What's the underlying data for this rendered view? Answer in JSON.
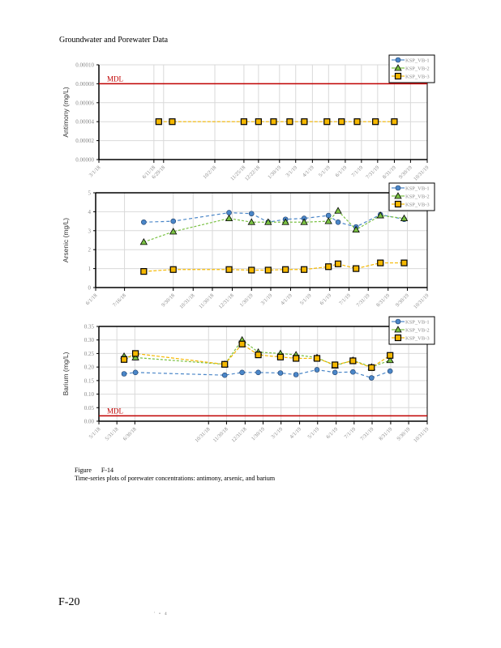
{
  "header": {
    "title": "Groundwater and Porewater Data"
  },
  "colors": {
    "vb1": "#4a86c8",
    "vb2": "#7ac143",
    "vb3": "#f5b800",
    "mdl": "#c00000",
    "grid": "#d9d9d9",
    "tick_text": "#8a8a8a"
  },
  "chart_data": [
    {
      "type": "line",
      "title": "",
      "xlabel": "",
      "ylabel": "Antimony (mg/L)",
      "ylim": [
        0,
        0.0001
      ],
      "yticks": [
        "0.00000",
        "0.00002",
        "0.00004",
        "0.00006",
        "0.00008",
        "0.00010"
      ],
      "yticks_values": [
        0,
        2e-05,
        4e-05,
        6e-05,
        8e-05,
        0.0001
      ],
      "xlim": [
        "2018-03-01",
        "2019-10-31"
      ],
      "xticks": [
        {
          "date": "2018-03-01",
          "label": "3/1/18"
        },
        {
          "date": "2018-06-11",
          "label": "6/11/18"
        },
        {
          "date": "2018-06-29",
          "label": "6/29/18"
        },
        {
          "date": "2018-10-02",
          "label": "10/2/18"
        },
        {
          "date": "2018-11-25",
          "label": "11/25/18"
        },
        {
          "date": "2018-12-22",
          "label": "12/22/18"
        },
        {
          "date": "2019-01-30",
          "label": "1/30/19"
        },
        {
          "date": "2019-03-01",
          "label": "3/1/19"
        },
        {
          "date": "2019-04-01",
          "label": "4/1/19"
        },
        {
          "date": "2019-05-01",
          "label": "5/1/19"
        },
        {
          "date": "2019-06-01",
          "label": "6/1/19"
        },
        {
          "date": "2019-07-01",
          "label": "7/1/19"
        },
        {
          "date": "2019-07-31",
          "label": "7/31/19"
        },
        {
          "date": "2019-08-31",
          "label": "8/31/19"
        },
        {
          "date": "2019-09-30",
          "label": "9/30/19"
        },
        {
          "date": "2019-10-31",
          "label": "10/31/19"
        }
      ],
      "mdl": {
        "label": "MDL",
        "value": 8e-05
      },
      "legend": "top-right",
      "series": [
        {
          "name": "KSP_VB-1",
          "marker": "circle",
          "points": []
        },
        {
          "name": "KSP_VB-2",
          "marker": "triangle",
          "points": []
        },
        {
          "name": "KSP_VB-3",
          "marker": "square",
          "points": [
            {
              "x": "2018-06-20",
              "y": 4e-05
            },
            {
              "x": "2018-07-15",
              "y": 4e-05
            },
            {
              "x": "2018-11-25",
              "y": 4e-05
            },
            {
              "x": "2018-12-22",
              "y": 4e-05
            },
            {
              "x": "2019-01-19",
              "y": 4e-05
            },
            {
              "x": "2019-02-18",
              "y": 4e-05
            },
            {
              "x": "2019-03-17",
              "y": 4e-05
            },
            {
              "x": "2019-04-28",
              "y": 4e-05
            },
            {
              "x": "2019-05-25",
              "y": 4e-05
            },
            {
              "x": "2019-06-23",
              "y": 4e-05
            },
            {
              "x": "2019-07-27",
              "y": 4e-05
            },
            {
              "x": "2019-08-31",
              "y": 4e-05
            }
          ]
        }
      ]
    },
    {
      "type": "line",
      "title": "",
      "xlabel": "",
      "ylabel": "Arsenic (mg/L)",
      "ylim": [
        0,
        5
      ],
      "yticks": [
        "0",
        "1",
        "2",
        "3",
        "4",
        "5"
      ],
      "yticks_values": [
        0,
        1,
        2,
        3,
        4,
        5
      ],
      "xlim": [
        "2018-06-01",
        "2019-10-31"
      ],
      "xticks": [
        {
          "date": "2018-06-01",
          "label": "6/1/18"
        },
        {
          "date": "2018-07-16",
          "label": "7/16/18"
        },
        {
          "date": "2018-09-30",
          "label": "9/30/18"
        },
        {
          "date": "2018-10-31",
          "label": "10/31/18"
        },
        {
          "date": "2018-11-30",
          "label": "11/30/18"
        },
        {
          "date": "2018-12-31",
          "label": "12/31/18"
        },
        {
          "date": "2019-01-30",
          "label": "1/30/19"
        },
        {
          "date": "2019-03-01",
          "label": "3/1/19"
        },
        {
          "date": "2019-04-01",
          "label": "4/1/19"
        },
        {
          "date": "2019-05-01",
          "label": "5/1/19"
        },
        {
          "date": "2019-06-01",
          "label": "6/1/19"
        },
        {
          "date": "2019-07-01",
          "label": "7/1/19"
        },
        {
          "date": "2019-07-31",
          "label": "7/31/19"
        },
        {
          "date": "2019-08-31",
          "label": "8/31/19"
        },
        {
          "date": "2019-09-30",
          "label": "9/30/19"
        },
        {
          "date": "2019-10-31",
          "label": "10/31/19"
        }
      ],
      "mdl": null,
      "legend": "top-right",
      "series": [
        {
          "name": "KSP_VB-1",
          "marker": "circle",
          "points": [
            {
              "x": "2018-08-15",
              "y": 3.45
            },
            {
              "x": "2018-09-30",
              "y": 3.5
            },
            {
              "x": "2018-12-26",
              "y": 3.95
            },
            {
              "x": "2019-01-30",
              "y": 3.9
            },
            {
              "x": "2019-02-25",
              "y": 3.45
            },
            {
              "x": "2019-03-24",
              "y": 3.6
            },
            {
              "x": "2019-04-22",
              "y": 3.65
            },
            {
              "x": "2019-05-30",
              "y": 3.8
            },
            {
              "x": "2019-06-14",
              "y": 3.45
            },
            {
              "x": "2019-07-12",
              "y": 3.2
            },
            {
              "x": "2019-08-19",
              "y": 3.85
            },
            {
              "x": "2019-09-25",
              "y": 3.6
            }
          ]
        },
        {
          "name": "KSP_VB-2",
          "marker": "triangle",
          "points": [
            {
              "x": "2018-08-15",
              "y": 2.4
            },
            {
              "x": "2018-09-30",
              "y": 2.95
            },
            {
              "x": "2018-12-26",
              "y": 3.65
            },
            {
              "x": "2019-01-30",
              "y": 3.45
            },
            {
              "x": "2019-02-25",
              "y": 3.45
            },
            {
              "x": "2019-03-24",
              "y": 3.45
            },
            {
              "x": "2019-04-22",
              "y": 3.45
            },
            {
              "x": "2019-05-30",
              "y": 3.5
            },
            {
              "x": "2019-06-14",
              "y": 4.05
            },
            {
              "x": "2019-07-12",
              "y": 3.05
            },
            {
              "x": "2019-08-19",
              "y": 3.8
            },
            {
              "x": "2019-09-25",
              "y": 3.65
            }
          ]
        },
        {
          "name": "KSP_VB-3",
          "marker": "square",
          "points": [
            {
              "x": "2018-08-15",
              "y": 0.85
            },
            {
              "x": "2018-09-30",
              "y": 0.95
            },
            {
              "x": "2018-12-26",
              "y": 0.95
            },
            {
              "x": "2019-01-30",
              "y": 0.92
            },
            {
              "x": "2019-02-25",
              "y": 0.92
            },
            {
              "x": "2019-03-24",
              "y": 0.95
            },
            {
              "x": "2019-04-22",
              "y": 0.95
            },
            {
              "x": "2019-05-30",
              "y": 1.1
            },
            {
              "x": "2019-06-14",
              "y": 1.25
            },
            {
              "x": "2019-07-12",
              "y": 1.0
            },
            {
              "x": "2019-08-19",
              "y": 1.3
            },
            {
              "x": "2019-09-25",
              "y": 1.3
            }
          ]
        }
      ]
    },
    {
      "type": "line",
      "title": "",
      "xlabel": "",
      "ylabel": "Barium (mg/L)",
      "ylim": [
        0,
        0.35
      ],
      "yticks": [
        "0.00",
        "0.05",
        "0.10",
        "0.15",
        "0.20",
        "0.25",
        "0.30",
        "0.35"
      ],
      "yticks_values": [
        0,
        0.05,
        0.1,
        0.15,
        0.2,
        0.25,
        0.3,
        0.35
      ],
      "xlim": [
        "2018-05-01",
        "2019-10-31"
      ],
      "xticks": [
        {
          "date": "2018-05-01",
          "label": "5/1/18"
        },
        {
          "date": "2018-05-31",
          "label": "5/31/18"
        },
        {
          "date": "2018-06-30",
          "label": "6/30/18"
        },
        {
          "date": "2018-10-31",
          "label": "10/31/18"
        },
        {
          "date": "2018-11-30",
          "label": "11/30/18"
        },
        {
          "date": "2018-12-31",
          "label": "12/31/18"
        },
        {
          "date": "2019-01-30",
          "label": "1/30/19"
        },
        {
          "date": "2019-03-01",
          "label": "3/1/19"
        },
        {
          "date": "2019-04-01",
          "label": "4/1/19"
        },
        {
          "date": "2019-05-01",
          "label": "5/1/19"
        },
        {
          "date": "2019-06-01",
          "label": "6/1/19"
        },
        {
          "date": "2019-07-01",
          "label": "7/1/19"
        },
        {
          "date": "2019-07-31",
          "label": "7/31/19"
        },
        {
          "date": "2019-08-31",
          "label": "8/31/19"
        },
        {
          "date": "2019-09-30",
          "label": "9/30/19"
        },
        {
          "date": "2019-10-31",
          "label": "10/31/19"
        }
      ],
      "mdl": {
        "label": "MDL",
        "value": 0.02
      },
      "legend": "top-right",
      "series": [
        {
          "name": "KSP_VB-1",
          "marker": "circle",
          "points": [
            {
              "x": "2018-06-12",
              "y": 0.175
            },
            {
              "x": "2018-07-01",
              "y": 0.18
            },
            {
              "x": "2018-11-27",
              "y": 0.17
            },
            {
              "x": "2018-12-26",
              "y": 0.18
            },
            {
              "x": "2019-01-22",
              "y": 0.18
            },
            {
              "x": "2019-02-28",
              "y": 0.178
            },
            {
              "x": "2019-03-26",
              "y": 0.172
            },
            {
              "x": "2019-04-30",
              "y": 0.19
            },
            {
              "x": "2019-05-30",
              "y": 0.18
            },
            {
              "x": "2019-06-29",
              "y": 0.182
            },
            {
              "x": "2019-07-30",
              "y": 0.16
            },
            {
              "x": "2019-08-30",
              "y": 0.185
            }
          ]
        },
        {
          "name": "KSP_VB-2",
          "marker": "triangle",
          "points": [
            {
              "x": "2018-06-12",
              "y": 0.24
            },
            {
              "x": "2018-07-01",
              "y": 0.235
            },
            {
              "x": "2018-11-27",
              "y": 0.21
            },
            {
              "x": "2018-12-26",
              "y": 0.3
            },
            {
              "x": "2019-01-22",
              "y": 0.255
            },
            {
              "x": "2019-02-28",
              "y": 0.25
            },
            {
              "x": "2019-03-26",
              "y": 0.245
            },
            {
              "x": "2019-04-30",
              "y": 0.235
            },
            {
              "x": "2019-05-30",
              "y": 0.205
            },
            {
              "x": "2019-06-29",
              "y": 0.225
            },
            {
              "x": "2019-07-30",
              "y": 0.2
            },
            {
              "x": "2019-08-30",
              "y": 0.225
            }
          ]
        },
        {
          "name": "KSP_VB-3",
          "marker": "square",
          "points": [
            {
              "x": "2018-06-12",
              "y": 0.228
            },
            {
              "x": "2018-07-01",
              "y": 0.25
            },
            {
              "x": "2018-11-27",
              "y": 0.21
            },
            {
              "x": "2018-12-26",
              "y": 0.285
            },
            {
              "x": "2019-01-22",
              "y": 0.245
            },
            {
              "x": "2019-02-28",
              "y": 0.237
            },
            {
              "x": "2019-03-26",
              "y": 0.232
            },
            {
              "x": "2019-04-30",
              "y": 0.232
            },
            {
              "x": "2019-05-30",
              "y": 0.208
            },
            {
              "x": "2019-06-29",
              "y": 0.223
            },
            {
              "x": "2019-07-30",
              "y": 0.198
            },
            {
              "x": "2019-08-30",
              "y": 0.243
            }
          ]
        }
      ]
    }
  ],
  "caption": {
    "figure_label": "Figure",
    "figure_number": "F-14",
    "text": "Time-series plots of porewater concentrations: antimony, arsenic, and barium"
  },
  "footer": {
    "page_number": "F-20",
    "mark": "' • 4"
  }
}
